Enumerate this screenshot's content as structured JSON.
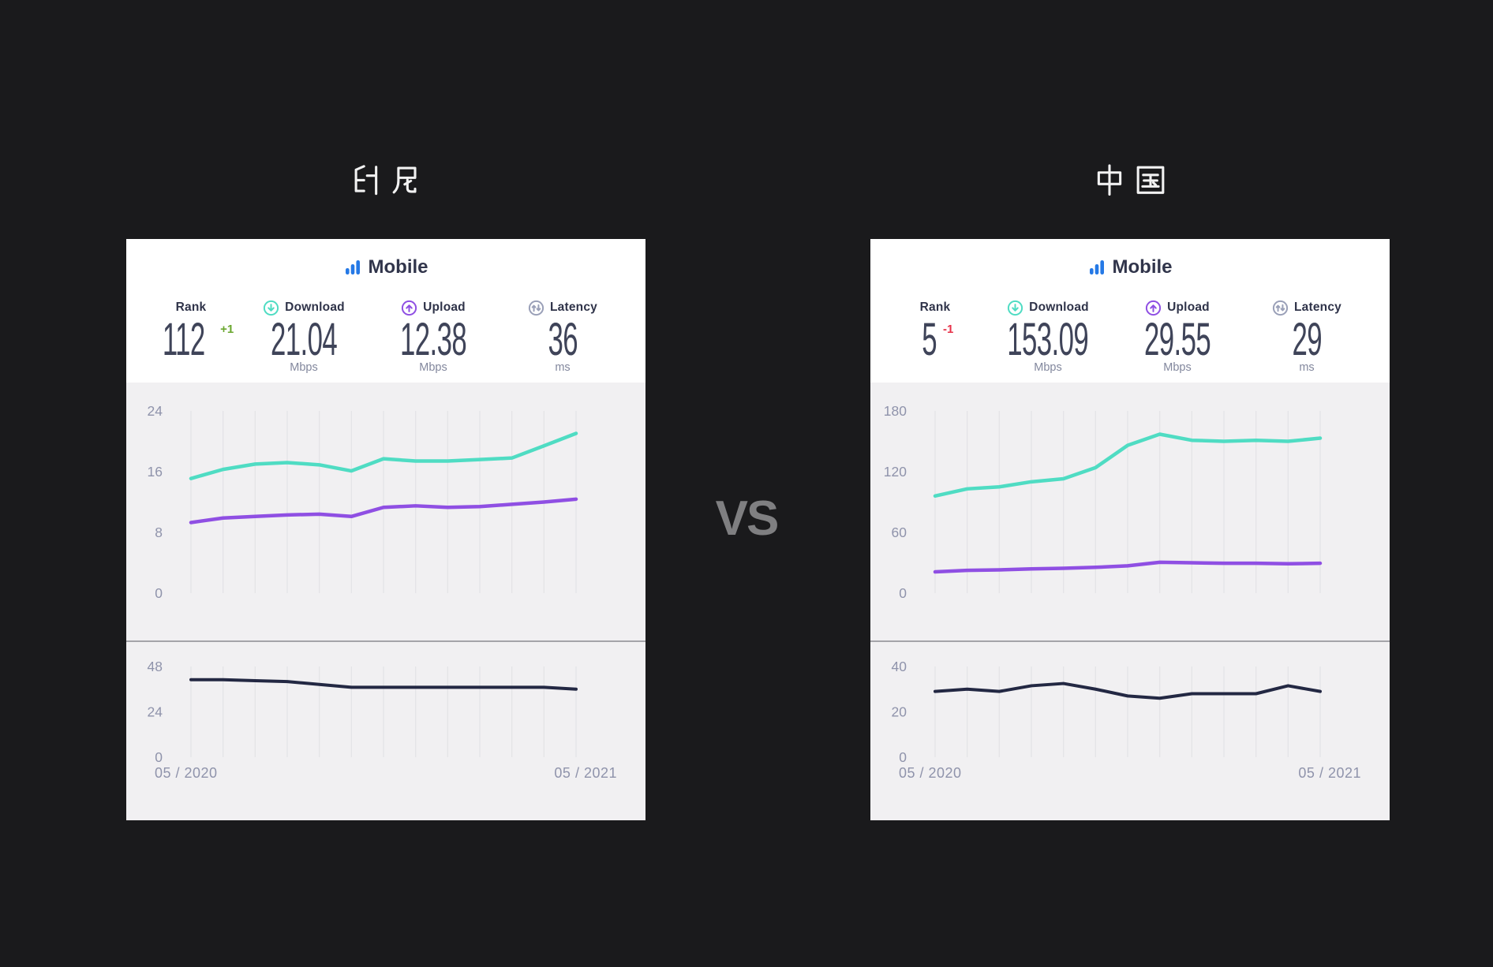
{
  "titles": {
    "left": "印尼",
    "right": "中国",
    "vs": "VS"
  },
  "colors": {
    "page_bg": "#1a1a1c",
    "card_bg": "#ffffff",
    "chart_bg": "#f1f0f2",
    "gridline": "#e4e3e7",
    "divider": "#a4a4a9",
    "axis_text": "#8f93ab",
    "heading_text": "#31354b",
    "value_text": "#3f4459",
    "unit_text": "#82879d",
    "accent_blue": "#2579e6",
    "download_teal": "#4fdcc3",
    "upload_purple": "#8f4fe3",
    "latency_navy": "#232843",
    "latency_icon_gray": "#9aa0b8",
    "delta_up_green": "#6aa72f",
    "delta_down_red": "#e73249",
    "vs_text": "#7f7f81"
  },
  "cards": [
    {
      "country": "印尼",
      "title": "Mobile",
      "stats": [
        {
          "label": "Rank",
          "value": "112",
          "delta": "+1",
          "delta_color": "#6aa72f",
          "unit": ""
        },
        {
          "label": "Download",
          "value": "21.04",
          "unit": "Mbps",
          "icon": "download-icon",
          "icon_color": "#4fdcc3"
        },
        {
          "label": "Upload",
          "value": "12.38",
          "unit": "Mbps",
          "icon": "upload-icon",
          "icon_color": "#8f4fe3"
        },
        {
          "label": "Latency",
          "value": "36",
          "unit": "ms",
          "icon": "latency-icon",
          "icon_color": "#9aa0b8"
        }
      ],
      "x_start": "05 / 2020",
      "x_end": "05 / 2021"
    },
    {
      "country": "中国",
      "title": "Mobile",
      "stats": [
        {
          "label": "Rank",
          "value": "5",
          "delta": "-1",
          "delta_color": "#e73249",
          "unit": ""
        },
        {
          "label": "Download",
          "value": "153.09",
          "unit": "Mbps",
          "icon": "download-icon",
          "icon_color": "#4fdcc3"
        },
        {
          "label": "Upload",
          "value": "29.55",
          "unit": "Mbps",
          "icon": "upload-icon",
          "icon_color": "#8f4fe3"
        },
        {
          "label": "Latency",
          "value": "29",
          "unit": "ms",
          "icon": "latency-icon",
          "icon_color": "#9aa0b8"
        }
      ],
      "x_start": "05 / 2020",
      "x_end": "05 / 2021"
    }
  ],
  "chart_data": [
    {
      "type": "line",
      "title": "Indonesia mobile speeds, monthly",
      "x_points": 13,
      "x_labels_visible": [
        "05 / 2020",
        "05 / 2021"
      ],
      "ylim": [
        0,
        24
      ],
      "yticks": [
        24,
        16,
        8,
        0
      ],
      "grid": "vertical-only",
      "legend": "none",
      "series": [
        {
          "name": "Download (Mbps)",
          "color": "#4fdcc3",
          "values": [
            15.1,
            16.3,
            17.0,
            17.2,
            16.9,
            16.1,
            17.7,
            17.4,
            17.4,
            17.6,
            17.8,
            19.4,
            21.04
          ]
        },
        {
          "name": "Upload (Mbps)",
          "color": "#8f4fe3",
          "values": [
            9.3,
            9.9,
            10.1,
            10.3,
            10.4,
            10.1,
            11.3,
            11.5,
            11.3,
            11.4,
            11.7,
            12.0,
            12.38
          ]
        }
      ]
    },
    {
      "type": "line",
      "title": "Indonesia mobile latency, monthly",
      "x_points": 13,
      "x_labels_visible": [
        "05 / 2020",
        "05 / 2021"
      ],
      "ylim": [
        0,
        48
      ],
      "yticks": [
        48,
        24,
        0
      ],
      "grid": "vertical-only",
      "legend": "none",
      "series": [
        {
          "name": "Latency (ms)",
          "color": "#232843",
          "values": [
            41,
            41,
            40.5,
            40,
            38.5,
            37,
            37,
            37,
            37,
            37,
            37,
            37,
            36
          ]
        }
      ]
    },
    {
      "type": "line",
      "title": "China mobile speeds, monthly",
      "x_points": 13,
      "x_labels_visible": [
        "05 / 2020",
        "05 / 2021"
      ],
      "ylim": [
        0,
        180
      ],
      "yticks": [
        180,
        120,
        60,
        0
      ],
      "grid": "vertical-only",
      "legend": "none",
      "series": [
        {
          "name": "Download (Mbps)",
          "color": "#4fdcc3",
          "values": [
            96,
            103,
            105,
            110,
            113,
            124,
            146,
            157,
            151,
            150,
            151,
            150,
            153.09
          ]
        },
        {
          "name": "Upload (Mbps)",
          "color": "#8f4fe3",
          "values": [
            21,
            22.5,
            23,
            24,
            24.5,
            25.5,
            27,
            30.5,
            30,
            29.5,
            29.5,
            29,
            29.55
          ]
        }
      ]
    },
    {
      "type": "line",
      "title": "China mobile latency, monthly",
      "x_points": 13,
      "x_labels_visible": [
        "05 / 2020",
        "05 / 2021"
      ],
      "ylim": [
        0,
        40
      ],
      "yticks": [
        40,
        20,
        0
      ],
      "grid": "vertical-only",
      "legend": "none",
      "series": [
        {
          "name": "Latency (ms)",
          "color": "#232843",
          "values": [
            29,
            30,
            29,
            31.5,
            32.5,
            30,
            27,
            26,
            28,
            28,
            28,
            31.5,
            29
          ]
        }
      ]
    }
  ]
}
